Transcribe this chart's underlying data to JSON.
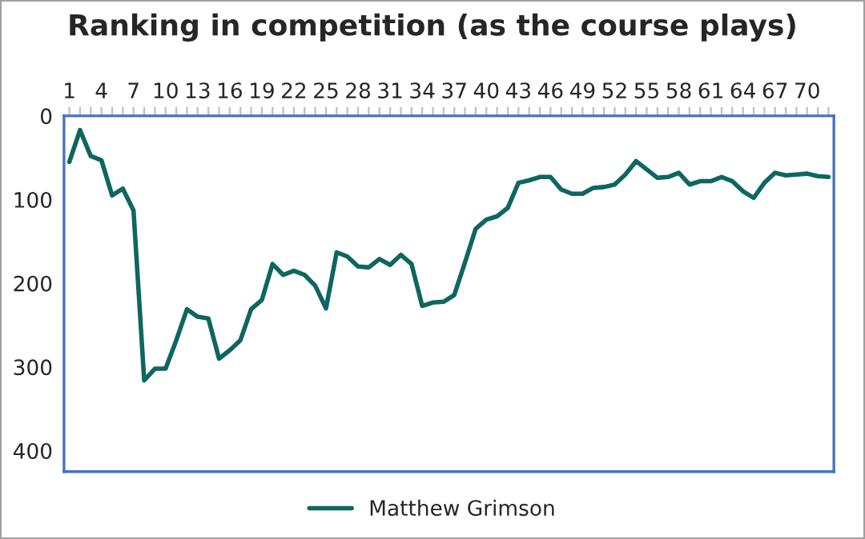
{
  "chart_data": {
    "type": "line",
    "title": "Ranking in competition (as the course plays)",
    "x": [
      1,
      2,
      3,
      4,
      5,
      6,
      7,
      8,
      9,
      10,
      11,
      12,
      13,
      14,
      15,
      16,
      17,
      18,
      19,
      20,
      21,
      22,
      23,
      24,
      25,
      26,
      27,
      28,
      29,
      30,
      31,
      32,
      33,
      34,
      35,
      36,
      37,
      38,
      39,
      40,
      41,
      42,
      43,
      44,
      45,
      46,
      47,
      48,
      49,
      50,
      51,
      52,
      53,
      54,
      55,
      56,
      57,
      58,
      59,
      60,
      61,
      62,
      63,
      64,
      65,
      66,
      67,
      68,
      69,
      70,
      71,
      72
    ],
    "series": [
      {
        "name": "Matthew Grimson",
        "color": "#0e6660",
        "values": [
          55,
          17,
          48,
          53,
          95,
          87,
          113,
          316,
          302,
          302,
          268,
          231,
          240,
          242,
          290,
          280,
          268,
          231,
          220,
          177,
          190,
          185,
          190,
          203,
          230,
          163,
          168,
          180,
          181,
          171,
          178,
          166,
          177,
          227,
          223,
          222,
          214,
          175,
          135,
          124,
          120,
          110,
          80,
          77,
          73,
          73,
          88,
          93,
          93,
          86,
          85,
          82,
          70,
          54,
          64,
          74,
          73,
          68,
          82,
          78,
          78,
          73,
          78,
          90,
          98,
          80,
          68,
          71,
          70,
          69,
          72,
          73
        ]
      }
    ],
    "xlim": [
      0.5,
      72.5
    ],
    "ylim": [
      425,
      0
    ],
    "xticks": [
      1,
      {
        "value": 2,
        "label": null
      },
      {
        "value": 3,
        "label": null
      },
      4,
      {
        "value": 5,
        "label": null
      },
      {
        "value": 6,
        "label": null
      },
      7,
      {
        "value": 8,
        "label": null
      },
      {
        "value": 9,
        "label": null
      },
      10,
      {
        "value": 11,
        "label": null
      },
      {
        "value": 12,
        "label": null
      },
      13,
      {
        "value": 14,
        "label": null
      },
      {
        "value": 15,
        "label": null
      },
      16,
      {
        "value": 17,
        "label": null
      },
      {
        "value": 18,
        "label": null
      },
      19,
      {
        "value": 20,
        "label": null
      },
      {
        "value": 21,
        "label": null
      },
      22,
      {
        "value": 23,
        "label": null
      },
      {
        "value": 24,
        "label": null
      },
      25,
      {
        "value": 26,
        "label": null
      },
      {
        "value": 27,
        "label": null
      },
      28,
      {
        "value": 29,
        "label": null
      },
      {
        "value": 30,
        "label": null
      },
      31,
      {
        "value": 32,
        "label": null
      },
      {
        "value": 33,
        "label": null
      },
      34,
      {
        "value": 35,
        "label": null
      },
      {
        "value": 36,
        "label": null
      },
      37,
      {
        "value": 38,
        "label": null
      },
      {
        "value": 39,
        "label": null
      },
      40,
      {
        "value": 41,
        "label": null
      },
      {
        "value": 42,
        "label": null
      },
      43,
      {
        "value": 44,
        "label": null
      },
      {
        "value": 45,
        "label": null
      },
      46,
      {
        "value": 47,
        "label": null
      },
      {
        "value": 48,
        "label": null
      },
      49,
      {
        "value": 50,
        "label": null
      },
      {
        "value": 51,
        "label": null
      },
      52,
      {
        "value": 53,
        "label": null
      },
      {
        "value": 54,
        "label": null
      },
      55,
      {
        "value": 56,
        "label": null
      },
      {
        "value": 57,
        "label": null
      },
      58,
      {
        "value": 59,
        "label": null
      },
      {
        "value": 60,
        "label": null
      },
      61,
      {
        "value": 62,
        "label": null
      },
      {
        "value": 63,
        "label": null
      },
      64,
      {
        "value": 65,
        "label": null
      },
      {
        "value": 66,
        "label": null
      },
      67,
      {
        "value": 68,
        "label": null
      },
      {
        "value": 69,
        "label": null
      },
      70,
      {
        "value": 71,
        "label": null
      },
      {
        "value": 72,
        "label": null
      }
    ],
    "yticks": [
      0,
      100,
      200,
      300,
      400
    ],
    "grid": false,
    "legend": "bottom",
    "marker": "none",
    "line_style": "solid"
  }
}
